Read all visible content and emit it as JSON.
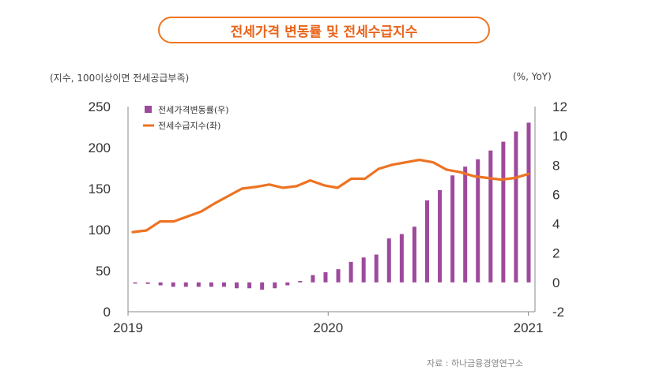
{
  "title": "전세가격 변동률 및 전세수급지수",
  "left_axis_caption": "(지수, 100이상이면 전세공급부족)",
  "right_axis_caption": "(%, YoY)",
  "source": "자료 : 하나금융경영연구소",
  "colors": {
    "accent": "#ee7523",
    "bar": "#9e4a9c",
    "line": "#ed7322"
  },
  "chart_data": {
    "type": "bar",
    "x_labels": [
      "2019",
      "2020",
      "2021"
    ],
    "left_axis": {
      "ticks": [
        "250",
        "200",
        "150",
        "100",
        "50",
        "0"
      ],
      "range": [
        0,
        250
      ]
    },
    "right_axis": {
      "ticks": [
        "12",
        "10",
        "8",
        "6",
        "4",
        "2",
        "0",
        "-2"
      ],
      "range": [
        -2,
        12
      ]
    },
    "series": [
      {
        "name": "전세가격변동률(우)",
        "type": "bar",
        "axis": "right",
        "values": [
          0.0,
          -0.1,
          -0.2,
          -0.3,
          -0.3,
          -0.3,
          -0.3,
          -0.3,
          -0.4,
          -0.4,
          -0.5,
          -0.4,
          -0.2,
          0.1,
          0.5,
          0.7,
          0.9,
          1.4,
          1.7,
          1.9,
          3.0,
          3.3,
          3.8,
          5.6,
          6.3,
          7.3,
          7.9,
          8.4,
          9.0,
          9.6,
          10.3,
          10.9
        ]
      },
      {
        "name": "전세수급지수(좌)",
        "type": "line",
        "axis": "left",
        "values": [
          97,
          99,
          110,
          110,
          116,
          122,
          132,
          141,
          150,
          152,
          155,
          151,
          153,
          160,
          154,
          151,
          162,
          162,
          174,
          179,
          182,
          185,
          182,
          173,
          170,
          165,
          163,
          161,
          163,
          168
        ]
      }
    ]
  }
}
